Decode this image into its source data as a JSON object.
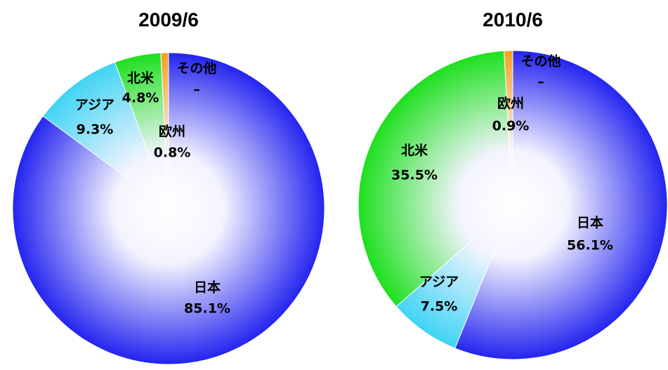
{
  "chart_data": [
    {
      "type": "pie",
      "title": "2009/6",
      "categories": [
        "日本",
        "アジア",
        "北米",
        "欧州",
        "その他"
      ],
      "values": [
        85.1,
        9.3,
        4.8,
        0.8,
        null
      ],
      "value_labels": [
        "85.1%",
        "9.3%",
        "4.8%",
        "0.8%",
        "–"
      ],
      "colors": [
        "#2424f0",
        "#40d4f4",
        "#1ee01e",
        "#f4a020",
        "#f08080"
      ]
    },
    {
      "type": "pie",
      "title": "2010/6",
      "categories": [
        "日本",
        "アジア",
        "北米",
        "欧州",
        "その他"
      ],
      "values": [
        56.1,
        7.5,
        35.5,
        0.9,
        null
      ],
      "value_labels": [
        "56.1%",
        "7.5%",
        "35.5%",
        "0.9%",
        "–"
      ],
      "colors": [
        "#2424f0",
        "#40d4f4",
        "#1ee01e",
        "#f4a020",
        "#f08080"
      ]
    }
  ]
}
